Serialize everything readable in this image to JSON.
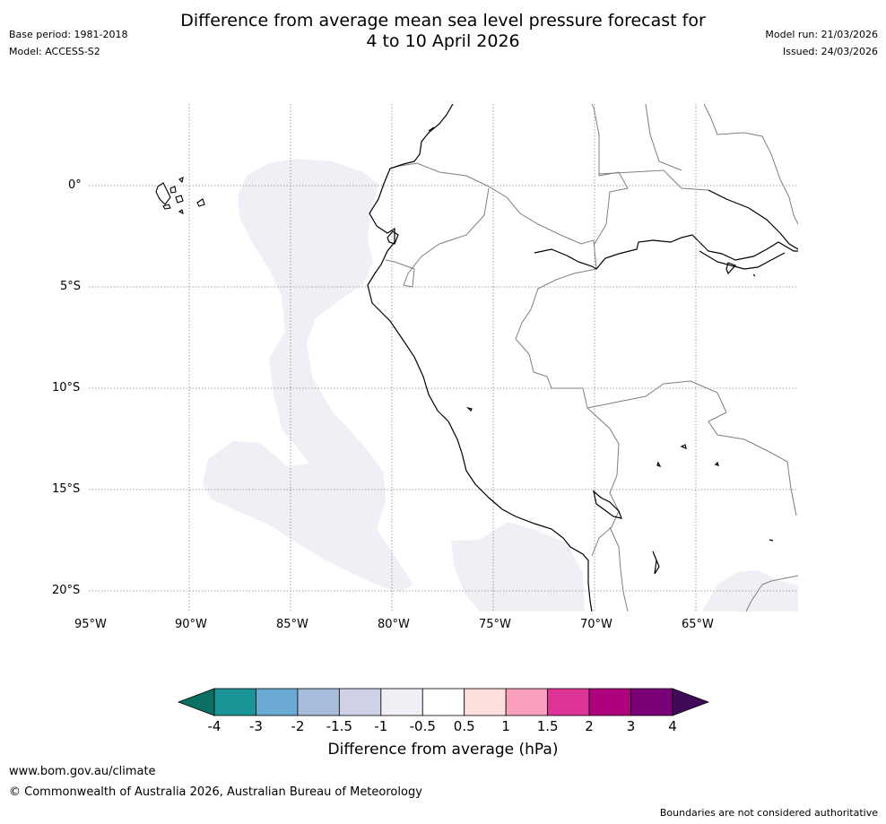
{
  "header": {
    "title_line1": "Difference from average mean sea level pressure forecast for",
    "title_line2": "4 to 10 April 2026",
    "base_period": "Base period: 1981-2018",
    "model": "Model: ACCESS-S2",
    "model_run": "Model run: 21/03/2026",
    "issued": "Issued: 24/03/2026"
  },
  "map": {
    "lat_labels": [
      "0°",
      "5°S",
      "10°S",
      "15°S",
      "20°S"
    ],
    "lon_labels": [
      "95°W",
      "90°W",
      "85°W",
      "80°W",
      "75°W",
      "70°W",
      "65°W"
    ],
    "colors": {
      "coastline": "#000000",
      "border": "#7f7f7f",
      "grid": "#888888",
      "anomaly_fill": "#f2eef5"
    }
  },
  "legend": {
    "title": "Difference from average (hPa)",
    "ticks": [
      "-4",
      "-3",
      "-2",
      "-1.5",
      "-1",
      "-0.5",
      "0.5",
      "1",
      "1.5",
      "2",
      "3",
      "4"
    ],
    "under_color": "#0a7063",
    "over_color": "#400a58",
    "bin_colors": [
      "#1b9497",
      "#6aaad2",
      "#a7bbdb",
      "#cfd2e6",
      "#f2eef5",
      "#ffffff",
      "#fde0de",
      "#fa9fbb",
      "#de3497",
      "#ad017e",
      "#7b0177"
    ]
  },
  "footer": {
    "website": "www.bom.gov.au/climate",
    "copyright": "© Commonwealth of Australia 2026, Australian Bureau of Meteorology",
    "disclaimer": "Boundaries are not considered authoritative"
  }
}
